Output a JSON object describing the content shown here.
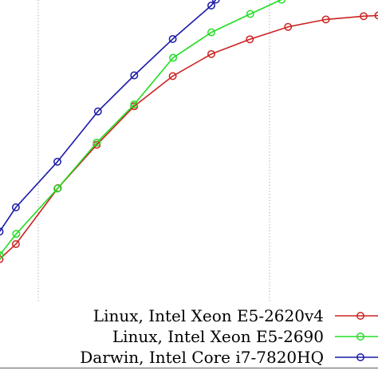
{
  "chart_data": {
    "type": "line",
    "title": "",
    "xlabel": "",
    "ylabel": "",
    "x_scale": "log",
    "grid": true,
    "legend_position": "bottom-right",
    "series": [
      {
        "name": "Linux, Intel Xeon E5-2620v4",
        "color": "#cc2222",
        "values": [
          [
            -0.001,
            0.295
          ],
          [
            0.042,
            0.336
          ],
          [
            0.153,
            0.488
          ],
          [
            0.256,
            0.606
          ],
          [
            0.355,
            0.711
          ],
          [
            0.457,
            0.793
          ],
          [
            0.559,
            0.853
          ],
          [
            0.661,
            0.893
          ],
          [
            0.762,
            0.927
          ],
          [
            0.862,
            0.947
          ],
          [
            0.962,
            0.956
          ],
          [
            1.001,
            0.958
          ]
        ]
      },
      {
        "name": "Linux, Intel Xeon E5-2690",
        "color": "#22dd22",
        "values": [
          [
            -0.001,
            0.306
          ],
          [
            0.043,
            0.364
          ],
          [
            0.152,
            0.487
          ],
          [
            0.256,
            0.612
          ],
          [
            0.355,
            0.716
          ],
          [
            0.458,
            0.843
          ],
          [
            0.559,
            0.912
          ],
          [
            0.662,
            0.962
          ],
          [
            0.745,
            1.001
          ]
        ]
      },
      {
        "name": "Darwin, Intel Core i7-7820HQ",
        "color": "#1a1aa8",
        "values": [
          [
            -0.001,
            0.37
          ],
          [
            0.042,
            0.436
          ],
          [
            0.152,
            0.56
          ],
          [
            0.259,
            0.697
          ],
          [
            0.355,
            0.795
          ],
          [
            0.457,
            0.894
          ],
          [
            0.559,
            0.985
          ],
          [
            0.571,
            1.001
          ]
        ]
      }
    ]
  }
}
